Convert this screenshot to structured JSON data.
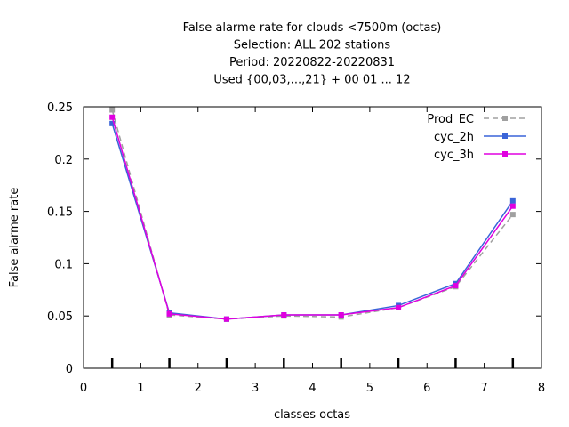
{
  "chart_data": {
    "type": "line",
    "title_lines": [
      "False alarme rate  for clouds <7500m (octas)",
      "Selection: ALL    202 stations",
      "Period: 20220822-20220831",
      "Used {00,03,...,21} + 00 01 ... 12"
    ],
    "xlabel": "classes octas",
    "ylabel": "False alarme rate",
    "xlim": [
      0,
      8
    ],
    "ylim": [
      0,
      0.25
    ],
    "xticks": [
      0,
      1,
      2,
      3,
      4,
      5,
      6,
      7,
      8
    ],
    "xtick_labels": [
      "0",
      "1",
      "2",
      "3",
      "4",
      "5",
      "6",
      "7",
      "8"
    ],
    "yticks": [
      0,
      0.05,
      0.1,
      0.15,
      0.2,
      0.25
    ],
    "ytick_labels": [
      "0",
      "0.05",
      "0.1",
      "0.15",
      "0.2",
      "0.25"
    ],
    "grid": false,
    "legend_position": "top-right",
    "x": [
      0.5,
      1.5,
      2.5,
      3.5,
      4.5,
      5.5,
      6.5,
      7.5
    ],
    "series": [
      {
        "name": "Prod_EC",
        "color": "#a0a0a0",
        "dash": "dashed",
        "values": [
          0.247,
          0.051,
          0.047,
          0.05,
          0.049,
          0.058,
          0.078,
          0.147
        ]
      },
      {
        "name": "cyc_2h",
        "color": "#3a64d8",
        "dash": "solid",
        "values": [
          0.234,
          0.053,
          0.047,
          0.051,
          0.051,
          0.06,
          0.081,
          0.16
        ]
      },
      {
        "name": "cyc_3h",
        "color": "#e000e0",
        "dash": "solid",
        "values": [
          0.24,
          0.052,
          0.047,
          0.051,
          0.051,
          0.058,
          0.079,
          0.155
        ]
      }
    ]
  }
}
